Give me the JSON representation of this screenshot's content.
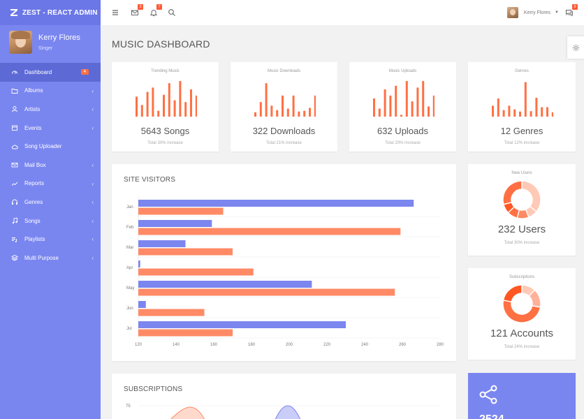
{
  "app": {
    "brand": "ZEST - REACT ADMIN",
    "user_name": "Kerry Flores",
    "user_role": "Singer"
  },
  "sidebar": {
    "items": [
      {
        "label": "Dashboard",
        "icon": "dashboard-icon",
        "active": true,
        "badge": "4"
      },
      {
        "label": "Albums",
        "icon": "folder-icon",
        "chevron": true
      },
      {
        "label": "Artists",
        "icon": "user-icon",
        "chevron": true
      },
      {
        "label": "Events",
        "icon": "calendar-icon",
        "chevron": true
      },
      {
        "label": "Song Uploader",
        "icon": "cloud-upload-icon"
      },
      {
        "label": "Mail Box",
        "icon": "mail-icon",
        "chevron": true
      },
      {
        "label": "Reports",
        "icon": "trend-icon",
        "chevron": true
      },
      {
        "label": "Genres",
        "icon": "headphones-icon",
        "chevron": true
      },
      {
        "label": "Songs",
        "icon": "music-note-icon",
        "chevron": true
      },
      {
        "label": "Playlists",
        "icon": "playlist-icon",
        "chevron": true
      },
      {
        "label": "Multi Purpose",
        "icon": "layers-icon",
        "chevron": true
      }
    ]
  },
  "topbar": {
    "mail_badge": "3",
    "bell_badge": "7",
    "chat_badge": "9",
    "user_name": "Kerry Flores"
  },
  "page": {
    "title": "MUSIC DASHBOARD"
  },
  "stats": [
    {
      "label": "Trending Music",
      "value": "5643 Songs",
      "sub": "Total 30% increase",
      "bars": [
        0.55,
        0.32,
        0.68,
        0.8,
        0.16,
        0.6,
        0.92,
        0.45,
        0.98,
        0.4,
        0.75,
        0.58
      ]
    },
    {
      "label": "Music Downloads",
      "value": "322 Downloads",
      "sub": "Total 21% increase",
      "bars": [
        0.12,
        0.4,
        0.92,
        0.3,
        0.18,
        0.58,
        0.22,
        0.58,
        0.14,
        0.16,
        0.24,
        0.58
      ]
    },
    {
      "label": "Music Uploads",
      "value": "632 Uploads",
      "sub": "Total 20% increase",
      "bars": [
        0.5,
        0.22,
        0.75,
        0.58,
        0.85,
        0.05,
        0.98,
        0.42,
        0.8,
        0.98,
        0.28,
        0.58
      ]
    },
    {
      "label": "Genres",
      "value": "12 Genres",
      "sub": "Total 12% increase",
      "bars": [
        0.3,
        0.5,
        0.18,
        0.3,
        0.2,
        0.14,
        0.95,
        0.15,
        0.52,
        0.26,
        0.26,
        0.12
      ]
    }
  ],
  "site_visitors": {
    "title": "SITE VISITORS"
  },
  "subscriptions_section": {
    "title": "SUBSCRIPTIONS",
    "ytick": "75"
  },
  "new_users": {
    "label": "New Users",
    "value": "232 Users",
    "sub": "Total 30% increase"
  },
  "subscriptions_card": {
    "label": "Subscriptions",
    "value": "121 Accounts",
    "sub": "Total 24% increase"
  },
  "share_card": {
    "value": "2524"
  },
  "colors": {
    "sidebar": "#7a86f0",
    "accent_orange": "#ff7043",
    "bar_orange": "#ff8a65",
    "bar_blue": "#7b86ef"
  },
  "chart_data": [
    {
      "type": "bar",
      "orientation": "horizontal",
      "title": "SITE VISITORS",
      "categories": [
        "Jan",
        "Feb",
        "Mar",
        "Apr",
        "May",
        "Jun",
        "Jul"
      ],
      "series": [
        {
          "values": [
            266,
            159,
            145,
            121,
            212,
            124,
            230
          ],
          "color": "#7b86ef"
        },
        {
          "values": [
            165,
            259,
            170,
            181,
            256,
            155,
            170
          ],
          "color": "#ff8a65"
        }
      ],
      "xlim": [
        120,
        280
      ],
      "xticks": [
        120,
        140,
        160,
        180,
        200,
        220,
        240,
        260,
        280
      ],
      "grid": true
    },
    {
      "type": "pie",
      "title": "New Users",
      "values": [
        36,
        8,
        10,
        9,
        8,
        29
      ],
      "colors": [
        "#ffc9b5",
        "#ffc9b5",
        "#ff8a65",
        "#ff7043",
        "#ff5722",
        "#ff6f43"
      ]
    },
    {
      "type": "pie",
      "title": "Subscriptions",
      "values": [
        12,
        16,
        50,
        22
      ],
      "colors": [
        "#ffc9b5",
        "#ffb199",
        "#ff7043",
        "#ff5722"
      ]
    }
  ]
}
